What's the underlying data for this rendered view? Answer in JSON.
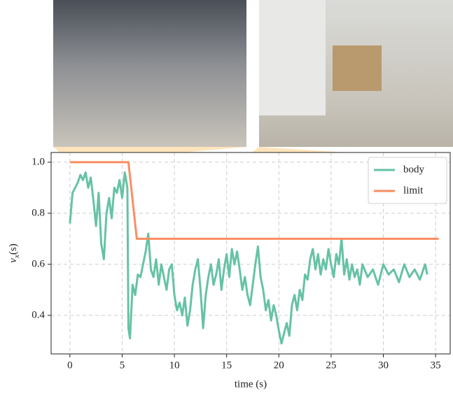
{
  "chart_data": {
    "type": "line",
    "xlabel": "time (s)",
    "ylabel": {
      "symbol": "v",
      "subscript": "x",
      "unit": "(s)"
    },
    "xlim": [
      -1.8,
      36.4
    ],
    "ylim": [
      0.249,
      1.038
    ],
    "xticks": [
      0,
      5,
      10,
      15,
      20,
      25,
      30,
      35
    ],
    "yticks": [
      0.4,
      0.6,
      0.8,
      {
        "value": 1,
        "label": "1.0"
      }
    ],
    "grid": true,
    "legend": "upper right",
    "series": [
      {
        "name": "body",
        "color": "#66c2a5",
        "x": [
          0,
          0.25,
          0.5,
          0.75,
          1,
          1.25,
          1.5,
          1.75,
          2,
          2.25,
          2.5,
          2.75,
          3,
          3.25,
          3.5,
          3.75,
          4,
          4.25,
          4.5,
          4.75,
          5,
          5.25,
          5.5,
          5.6,
          5.75,
          6,
          6.25,
          6.5,
          6.75,
          7,
          7.25,
          7.5,
          7.75,
          8,
          8.25,
          8.5,
          8.75,
          9,
          9.25,
          9.5,
          9.75,
          10,
          10.25,
          10.5,
          10.75,
          11,
          11.25,
          11.5,
          11.75,
          12,
          12.25,
          12.5,
          12.75,
          13,
          13.25,
          13.5,
          13.75,
          14,
          14.25,
          14.5,
          14.75,
          15,
          15.25,
          15.5,
          15.75,
          16,
          16.25,
          16.5,
          16.75,
          17,
          17.25,
          17.5,
          17.75,
          18,
          18.25,
          18.5,
          18.75,
          19,
          19.25,
          19.5,
          19.75,
          20,
          20.25,
          20.5,
          20.75,
          21,
          21.25,
          21.5,
          21.75,
          22,
          22.25,
          22.5,
          22.75,
          23,
          23.25,
          23.5,
          23.75,
          24,
          24.25,
          24.5,
          24.75,
          25,
          25.25,
          25.5,
          25.75,
          26,
          26.25,
          26.5,
          26.75,
          27,
          27.25,
          27.5,
          27.75,
          28,
          28.5,
          29,
          29.5,
          30,
          30.5,
          31,
          31.5,
          32,
          32.5,
          33,
          33.5,
          34,
          34.2
        ],
        "values": [
          0.76,
          0.88,
          0.9,
          0.92,
          0.95,
          0.93,
          0.96,
          0.9,
          0.94,
          0.85,
          0.75,
          0.88,
          0.68,
          0.62,
          0.8,
          0.86,
          0.78,
          0.9,
          0.88,
          0.93,
          0.86,
          0.96,
          0.9,
          0.35,
          0.31,
          0.52,
          0.48,
          0.56,
          0.55,
          0.6,
          0.65,
          0.72,
          0.58,
          0.55,
          0.62,
          0.52,
          0.6,
          0.55,
          0.5,
          0.58,
          0.6,
          0.48,
          0.42,
          0.45,
          0.4,
          0.47,
          0.36,
          0.42,
          0.52,
          0.58,
          0.62,
          0.5,
          0.35,
          0.48,
          0.55,
          0.6,
          0.52,
          0.56,
          0.62,
          0.5,
          0.58,
          0.64,
          0.55,
          0.66,
          0.6,
          0.65,
          0.58,
          0.5,
          0.55,
          0.48,
          0.44,
          0.52,
          0.6,
          0.67,
          0.55,
          0.5,
          0.42,
          0.46,
          0.38,
          0.44,
          0.4,
          0.34,
          0.29,
          0.33,
          0.37,
          0.32,
          0.44,
          0.48,
          0.42,
          0.5,
          0.46,
          0.56,
          0.54,
          0.62,
          0.66,
          0.58,
          0.64,
          0.56,
          0.62,
          0.58,
          0.66,
          0.6,
          0.55,
          0.64,
          0.6,
          0.7,
          0.56,
          0.62,
          0.54,
          0.6,
          0.55,
          0.58,
          0.52,
          0.6,
          0.55,
          0.58,
          0.52,
          0.6,
          0.56,
          0.58,
          0.53,
          0.6,
          0.55,
          0.58,
          0.54,
          0.6,
          0.56
        ]
      },
      {
        "name": "limit",
        "color": "#fc8d62",
        "x": [
          0,
          5.6,
          6.4,
          35.3
        ],
        "values": [
          1,
          1,
          0.7,
          0.7
        ]
      }
    ]
  }
}
